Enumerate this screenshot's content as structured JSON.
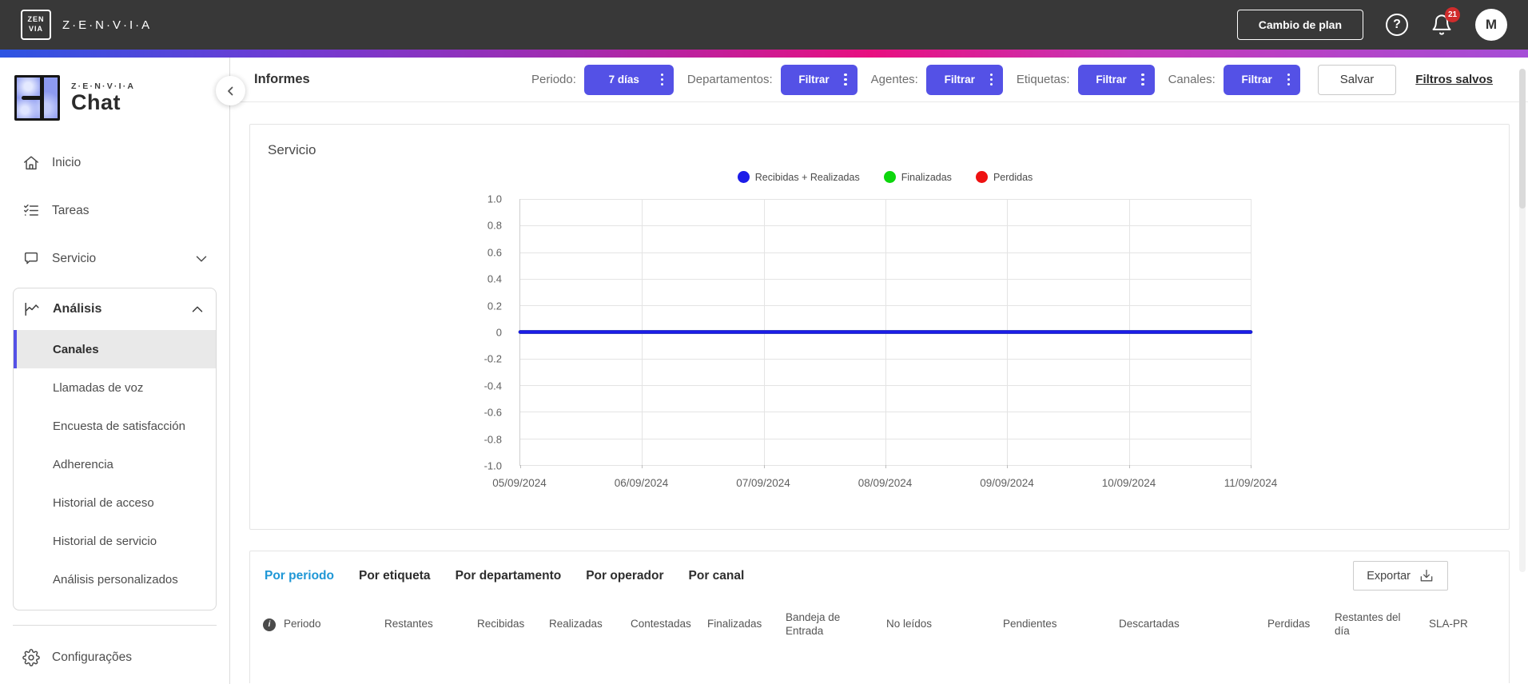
{
  "topbar": {
    "logo_line1": "ZEN",
    "logo_line2": "VIA",
    "brand": "Z·E·N·V·I·A",
    "change_plan_label": "Cambio de plan",
    "help_glyph": "?",
    "notification_count": "21",
    "avatar_initial": "M"
  },
  "sidebar": {
    "logo_brand": "Z·E·N·V·I·A",
    "logo_product": "Chat",
    "items": [
      {
        "id": "inicio",
        "label": "Inicio",
        "icon": "home-icon"
      },
      {
        "id": "tareas",
        "label": "Tareas",
        "icon": "tasks-icon"
      },
      {
        "id": "servicio",
        "label": "Servicio",
        "icon": "chat-bubble-icon",
        "chevron": "down"
      }
    ],
    "analysis": {
      "label": "Análisis",
      "icon": "line-chart-icon",
      "chevron": "up",
      "children": [
        {
          "label": "Canales",
          "selected": true
        },
        {
          "label": "Llamadas de voz"
        },
        {
          "label": "Encuesta de satisfacción"
        },
        {
          "label": "Adherencia"
        },
        {
          "label": "Historial de acceso"
        },
        {
          "label": "Historial de servicio"
        },
        {
          "label": "Análisis personalizados"
        }
      ]
    },
    "footer_item": {
      "label": "Configurações",
      "icon": "gear-icon"
    }
  },
  "header": {
    "title": "Informes",
    "filters": [
      {
        "label": "Periodo:",
        "button": "7 días",
        "wide": true
      },
      {
        "label": "Departamentos:",
        "button": "Filtrar"
      },
      {
        "label": "Agentes:",
        "button": "Filtrar"
      },
      {
        "label": "Etiquetas:",
        "button": "Filtrar"
      },
      {
        "label": "Canales:",
        "button": "Filtrar"
      }
    ],
    "save_label": "Salvar",
    "saved_filters_label": "Filtros salvos"
  },
  "chart_data": {
    "type": "line",
    "title": "Servicio",
    "x": [
      "05/09/2024",
      "06/09/2024",
      "07/09/2024",
      "08/09/2024",
      "09/09/2024",
      "10/09/2024",
      "11/09/2024"
    ],
    "series": [
      {
        "name": "Recibidas + Realizadas",
        "color": "#1c1ce8",
        "values": [
          0,
          0,
          0,
          0,
          0,
          0,
          0
        ]
      },
      {
        "name": "Finalizadas",
        "color": "#0cd60c",
        "values": [
          0,
          0,
          0,
          0,
          0,
          0,
          0
        ]
      },
      {
        "name": "Perdidas",
        "color": "#ee1111",
        "values": [
          0,
          0,
          0,
          0,
          0,
          0,
          0
        ]
      }
    ],
    "ylim": [
      -1,
      1
    ],
    "yticks": [
      1.0,
      0.8,
      0.6,
      0.4,
      0.2,
      0,
      -0.2,
      -0.4,
      -0.6,
      -0.8,
      -1.0
    ],
    "grid": true,
    "legend_position": "top"
  },
  "report_tabs": {
    "tabs": [
      {
        "label": "Por periodo",
        "active": true
      },
      {
        "label": "Por etiqueta"
      },
      {
        "label": "Por departamento"
      },
      {
        "label": "Por operador"
      },
      {
        "label": "Por canal"
      }
    ],
    "export_label": "Exportar"
  },
  "table": {
    "headers": [
      "Periodo",
      "Restantes",
      "Recibidas",
      "Realizadas",
      "Contestadas",
      "Finalizadas",
      "Bandeja de Entrada",
      "No leídos",
      "Pendientes",
      "Descartadas",
      "Perdidas",
      "Restantes del día",
      "SLA-PR"
    ]
  },
  "colors": {
    "accent": "#5451e6",
    "active_tab": "#1f97d6",
    "badge": "#d02c2c",
    "gradient": [
      "#2d55e2",
      "#a42bae",
      "#e80f80",
      "#a54ed6"
    ]
  }
}
